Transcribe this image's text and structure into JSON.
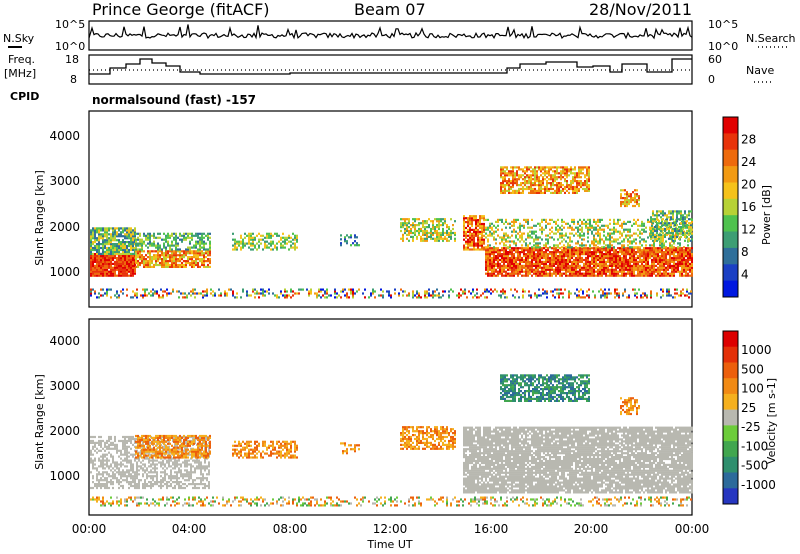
{
  "header": {
    "station": "Prince George (fitACF)",
    "beam": "Beam 07",
    "date": "28/Nov/2011"
  },
  "top_panel": {
    "left_label": "N.Sky",
    "right_label": "N.Search",
    "left_ticks": [
      "10^5",
      "10^0"
    ],
    "right_ticks": [
      "10^5",
      "10^0"
    ]
  },
  "freq_panel": {
    "left_label_1": "Freq.",
    "left_label_2": "[MHz]",
    "cpid_label": "CPID",
    "right_label": "Nave",
    "left_ticks": [
      "18",
      "8"
    ],
    "right_ticks": [
      "60",
      "0"
    ],
    "mode_text": "normalsound (fast) -157"
  },
  "colors": {
    "power": [
      "#0018e0",
      "#1b40c4",
      "#2f6f9a",
      "#3d9e74",
      "#4fc24e",
      "#b7d236",
      "#f5c21a",
      "#f29a12",
      "#ee6a0c",
      "#e8330a",
      "#e10000"
    ],
    "velocity": [
      "#2636c0",
      "#2c6a9b",
      "#2f8f6e",
      "#41a64f",
      "#6ccc3a",
      "#b8b8b0",
      "#f5b01e",
      "#f18a14",
      "#ec5f0c",
      "#e43008",
      "#dd0000"
    ]
  },
  "chart_data": [
    {
      "type": "heatmap",
      "panel": "power",
      "ylabel": "Slant Range [km]",
      "y_ticks": [
        "1000",
        "2000",
        "3000",
        "4000"
      ],
      "colorbar_label": "Power [dB]",
      "colorbar_ticks": [
        "4",
        "8",
        "12",
        "16",
        "20",
        "24",
        "28"
      ]
    },
    {
      "type": "heatmap",
      "panel": "velocity",
      "ylabel": "Slant Range [km]",
      "y_ticks": [
        "1000",
        "2000",
        "3000",
        "4000"
      ],
      "colorbar_label": "Velocity [m s-1]",
      "colorbar_ticks": [
        "1000",
        "500",
        "100",
        "25",
        "-25",
        "-100",
        "-500",
        "-1000"
      ],
      "xlabel": "Time UT",
      "x_ticks": [
        "00:00",
        "04:00",
        "08:00",
        "12:00",
        "16:00",
        "20:00",
        "00:00"
      ]
    }
  ]
}
